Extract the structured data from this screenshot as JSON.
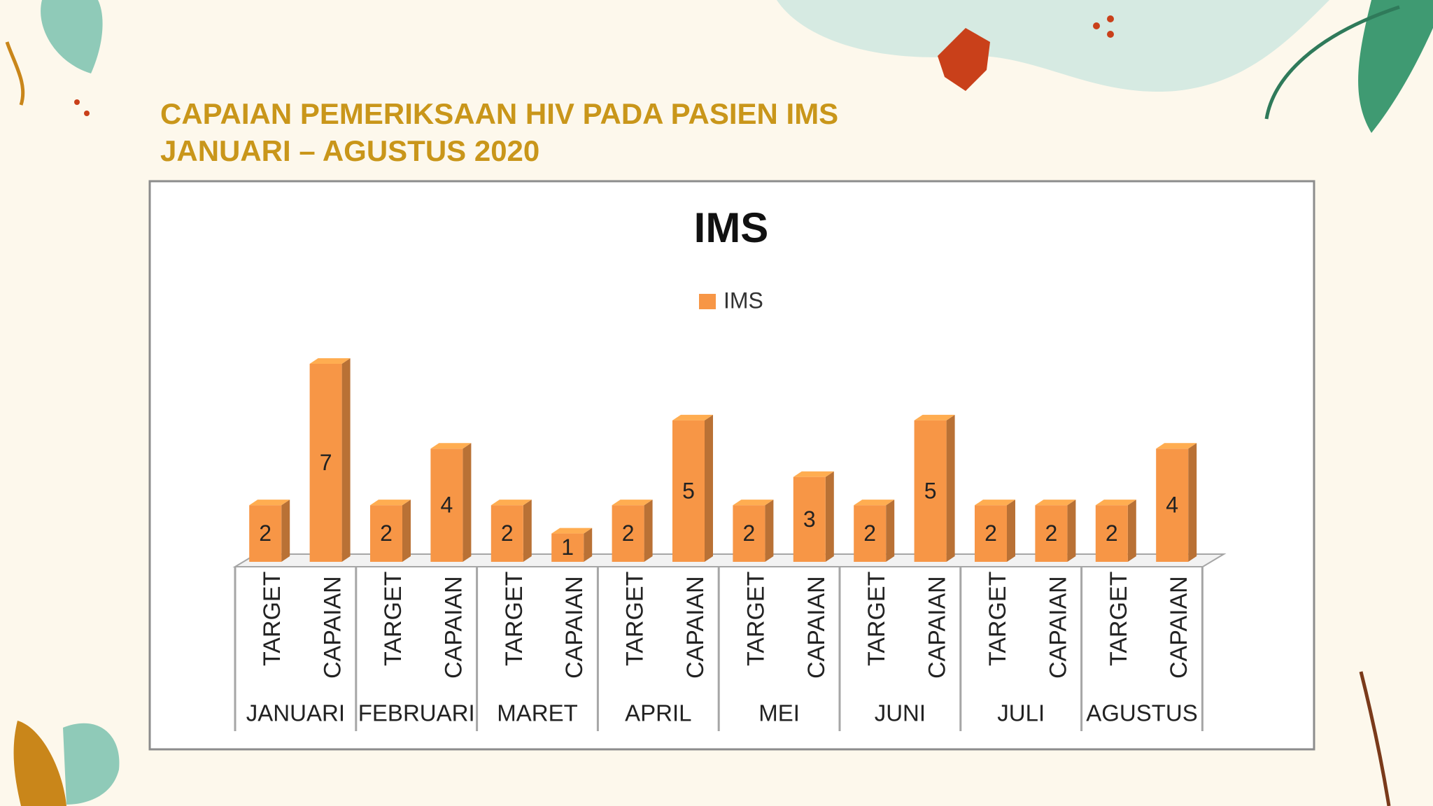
{
  "slide": {
    "title_lines": [
      "CAPAIAN PEMERIKSAAN HIV PADA PASIEN IMS",
      "JANUARI – AGUSTUS 2020"
    ]
  },
  "chart_data": {
    "type": "bar",
    "title": "IMS",
    "groups": [
      "JANUARI",
      "FEBRUARI",
      "MARET",
      "APRIL",
      "MEI",
      "JUNI",
      "JULI",
      "AGUSTUS"
    ],
    "categories": [
      "TARGET",
      "CAPAIAN",
      "TARGET",
      "CAPAIAN",
      "TARGET",
      "CAPAIAN",
      "TARGET",
      "CAPAIAN",
      "TARGET",
      "CAPAIAN",
      "TARGET",
      "CAPAIAN",
      "TARGET",
      "CAPAIAN",
      "TARGET",
      "CAPAIAN"
    ],
    "series": [
      {
        "name": "IMS",
        "color": "#f79646",
        "values": [
          2,
          7,
          2,
          4,
          2,
          1,
          2,
          5,
          2,
          3,
          2,
          5,
          2,
          2,
          2,
          4
        ]
      }
    ],
    "legend": "top",
    "data_labels": true
  }
}
